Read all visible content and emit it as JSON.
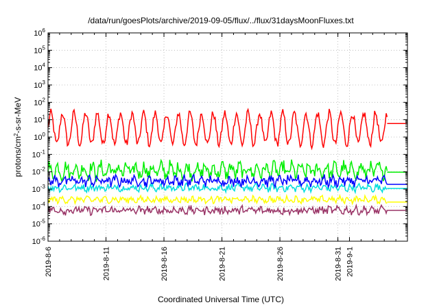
{
  "chart_data": {
    "type": "line",
    "title": "/data/run/goesPlots/archive/2019-09-05/flux/../flux/31daysMoonFluxes.txt",
    "xlabel": "Coordinated Universal Time (UTC)",
    "ylabel": "protons/cm²-s-sr-MeV",
    "y_scale": "log",
    "ylim": [
      1e-06,
      1000000.0
    ],
    "y_ticks": [
      {
        "exp": "-6",
        "label": "10"
      },
      {
        "exp": "-5",
        "label": "10"
      },
      {
        "exp": "-4",
        "label": "10"
      },
      {
        "exp": "-3",
        "label": "10"
      },
      {
        "exp": "-2",
        "label": "10"
      },
      {
        "exp": "-1",
        "label": "10"
      },
      {
        "exp": "0",
        "label": "10"
      },
      {
        "exp": "1",
        "label": "10"
      },
      {
        "exp": "2",
        "label": "10"
      },
      {
        "exp": "3",
        "label": "10"
      },
      {
        "exp": "4",
        "label": "10"
      },
      {
        "exp": "5",
        "label": "10"
      },
      {
        "exp": "6",
        "label": "10"
      }
    ],
    "xlim": [
      "2019-08-06",
      "2019-09-06"
    ],
    "x_ticks": [
      "2019-8-6",
      "2019-8-11",
      "2019-8-16",
      "2019-8-21",
      "2019-8-26",
      "2019-8-31",
      "2019-9-1"
    ],
    "grid": true,
    "data_end": "2019-09-04T06:00",
    "series": [
      {
        "color": "#ff0000",
        "base": 3.0,
        "amp_decades": 0.9,
        "noise_decades": 0.25,
        "diurnal": true,
        "level_after": 6.0
      },
      {
        "color": "#00ee00",
        "base": 0.012,
        "amp_decades": 0.3,
        "noise_decades": 0.35,
        "diurnal": false,
        "level_after": 0.0095
      },
      {
        "color": "#00dddd",
        "base": 0.0012,
        "amp_decades": 0.1,
        "noise_decades": 0.18,
        "diurnal": false,
        "level_after": 0.0011
      },
      {
        "color": "#0000ff",
        "base": 0.003,
        "amp_decades": 0.15,
        "noise_decades": 0.25,
        "diurnal": false,
        "level_after": 0.0019
      },
      {
        "color": "#ffff00",
        "base": 0.00025,
        "amp_decades": 0.1,
        "noise_decades": 0.15,
        "diurnal": false,
        "level_after": 0.00018
      },
      {
        "color": "#993366",
        "base": 6e-05,
        "amp_decades": 0.1,
        "noise_decades": 0.2,
        "diurnal": false,
        "level_after": 6e-05
      }
    ]
  }
}
